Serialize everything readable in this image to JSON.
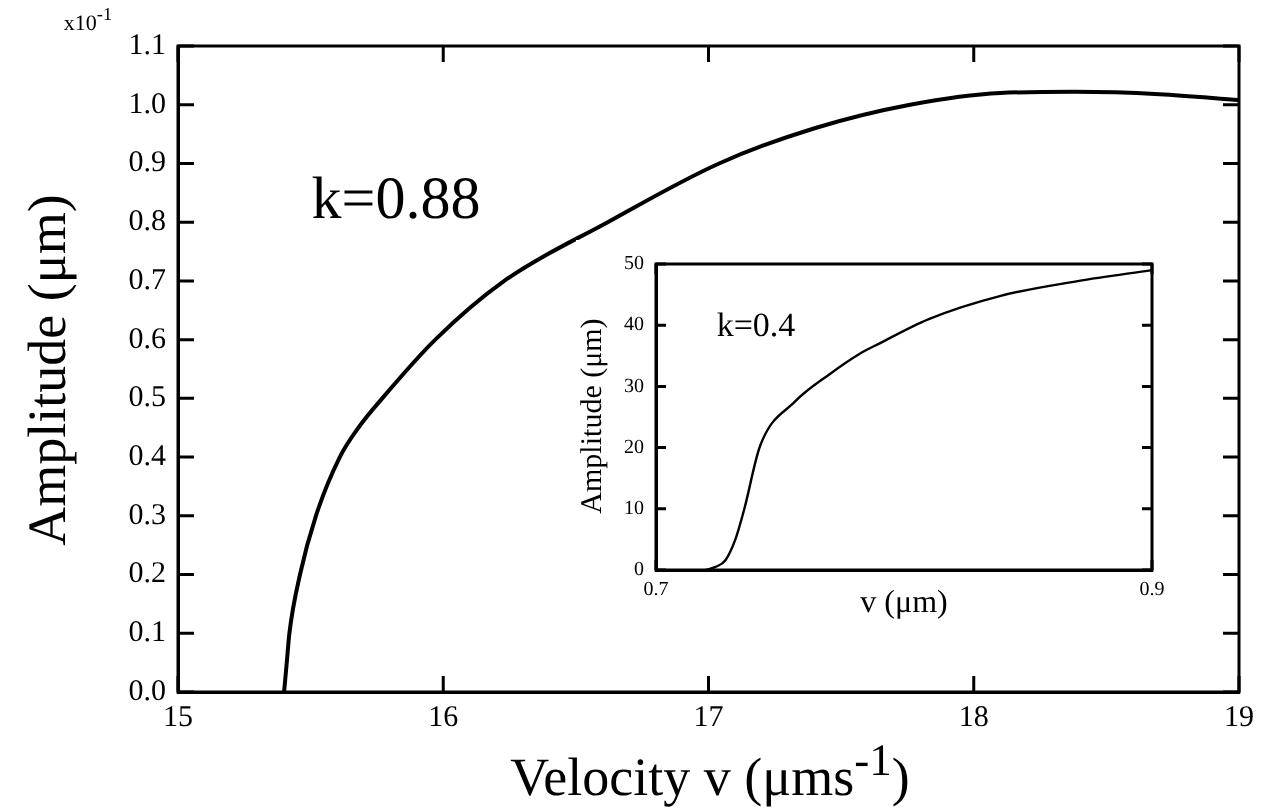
{
  "chart_data": [
    {
      "type": "line",
      "xlabel": "Velocity v (μms$^{-1}$)",
      "ylabel": "Amplitude (μm)",
      "annotations": [
        "x10$^{-1}$",
        "k=0.88"
      ],
      "x": [
        15.4,
        15.41,
        15.42,
        15.46,
        15.52,
        15.61,
        15.68,
        15.77,
        15.97,
        16.23,
        16.62,
        17.04,
        17.4,
        17.76,
        18.1,
        18.38,
        18.7,
        19.0
      ],
      "series": [
        {
          "color": "#000000",
          "values": [
            0,
            0.05,
            0.1,
            0.2,
            0.3,
            0.4,
            0.45,
            0.5,
            0.6,
            0.7,
            0.8,
            0.9,
            0.96,
            1.0,
            1.02,
            1.022,
            1.018,
            1.008
          ]
        }
      ],
      "xlim": [
        15,
        19
      ],
      "ylim": [
        0,
        1.1
      ],
      "xticks": [
        15,
        16,
        17,
        18,
        19
      ],
      "yticks": [
        {
          "value": 0,
          "label": "0.0"
        },
        0.1,
        0.2,
        0.3,
        0.4,
        0.5,
        0.6,
        0.7,
        0.8,
        0.9,
        {
          "value": 1,
          "label": "1.0"
        },
        1.1
      ],
      "grid": false,
      "legend": false,
      "marker": "none",
      "line_style": "solid"
    },
    {
      "type": "line",
      "xlabel": "v (μm)",
      "ylabel": "Amplitude (μm)",
      "annotations": [
        "k=0.4"
      ],
      "x": [
        0.72,
        0.724,
        0.728,
        0.732,
        0.7355,
        0.742,
        0.756,
        0.77,
        0.782,
        0.79,
        0.81,
        0.839,
        0.87,
        0.9
      ],
      "series": [
        {
          "color": "#000000",
          "values": [
            0,
            0.5,
            1.6,
            5,
            9.8,
            20.3,
            27.5,
            32,
            35.3,
            37,
            41,
            44.8,
            47.2,
            49
          ]
        }
      ],
      "xlim": [
        0.7,
        0.9
      ],
      "ylim": [
        0,
        50
      ],
      "xticks": [
        0.7,
        0.9
      ],
      "yticks": [
        0,
        10,
        20,
        30,
        40,
        50
      ],
      "grid": false,
      "legend": false,
      "marker": "none",
      "line_style": "solid"
    }
  ]
}
